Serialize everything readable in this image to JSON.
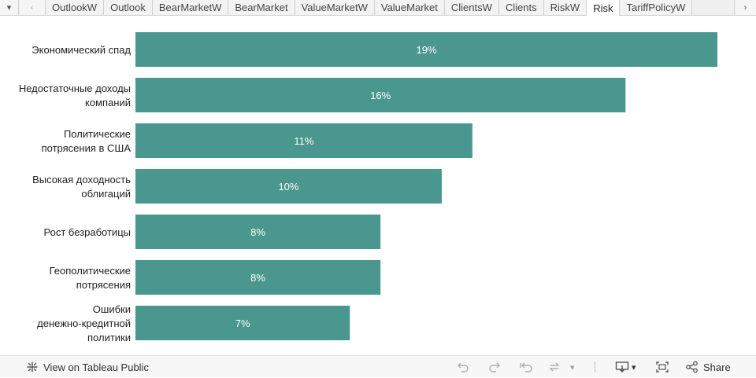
{
  "tabs": {
    "items": [
      "OutlookW",
      "Outlook",
      "BearMarketW",
      "BearMarket",
      "ValueMarketW",
      "ValueMarket",
      "ClientsW",
      "Clients",
      "RiskW",
      "Risk",
      "TariffPolicyW"
    ],
    "active_index": 9
  },
  "toolbar": {
    "view_on_public": "View on Tableau Public",
    "share": "Share"
  },
  "chart_data": {
    "type": "bar",
    "orientation": "horizontal",
    "categories": [
      [
        "Экономический спад"
      ],
      [
        "Недостаточные доходы",
        "компаний"
      ],
      [
        "Политические",
        "потрясения в США"
      ],
      [
        "Высокая доходность",
        "облигаций"
      ],
      [
        "Рост безработицы"
      ],
      [
        "Геополитические",
        "потрясения"
      ],
      [
        "Ошибки",
        "денежно-кредитной",
        "политики"
      ]
    ],
    "values": [
      19,
      16,
      11,
      10,
      8,
      8,
      7
    ],
    "value_labels": [
      "19%",
      "16%",
      "11%",
      "10%",
      "8%",
      "8%",
      "7%"
    ],
    "xlim": [
      0,
      19
    ],
    "color": "#4a978f",
    "grid": false,
    "legend": "none"
  }
}
